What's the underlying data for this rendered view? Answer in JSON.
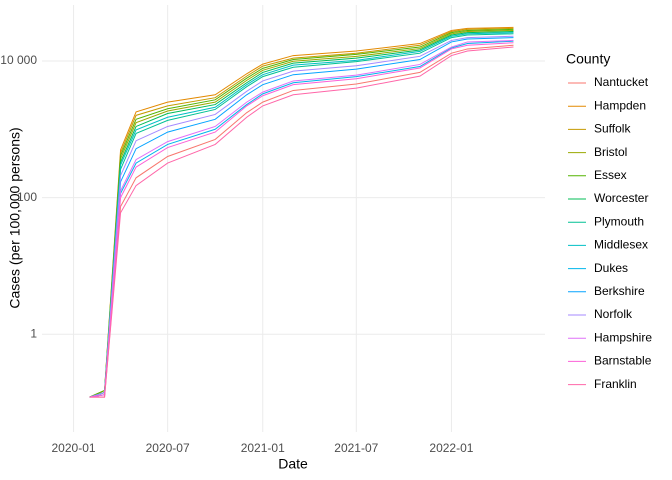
{
  "chart_data": {
    "type": "line",
    "x_label": "Date",
    "y_label": "Cases (per 100,000 persons)",
    "x": [
      "2020-02",
      "2020-03",
      "2020-04",
      "2020-05",
      "2020-07",
      "2020-10",
      "2020-12",
      "2021-01",
      "2021-03",
      "2021-07",
      "2021-11",
      "2022-01",
      "2022-02",
      "2022-05"
    ],
    "xlim": [
      "2019-11",
      "2022-07"
    ],
    "xticks": [
      "2020-01",
      "2020-07",
      "2021-01",
      "2021-07",
      "2022-01"
    ],
    "ylim": [
      0.037,
      66000
    ],
    "log_y": true,
    "yticks": [
      1,
      100,
      {
        "value": 10000,
        "label": "10 000"
      }
    ],
    "grid": true,
    "legend_title": "County",
    "legend_position": "right",
    "series": [
      {
        "name": "Nantucket",
        "color": "#F8766D",
        "values": [
          0.12,
          0.12,
          74,
          195,
          400,
          710,
          1750,
          2500,
          3700,
          4600,
          6800,
          13000,
          15000,
          17000
        ]
      },
      {
        "name": "Hampden",
        "color": "#E38900",
        "values": [
          0.12,
          0.15,
          500,
          1800,
          2500,
          3200,
          6500,
          9000,
          12000,
          14000,
          18000,
          28000,
          30000,
          31000
        ]
      },
      {
        "name": "Suffolk",
        "color": "#C49A00",
        "values": [
          0.12,
          0.14,
          450,
          1600,
          2200,
          2900,
          6000,
          8400,
          11000,
          13000,
          17000,
          27000,
          29000,
          30000
        ]
      },
      {
        "name": "Bristol",
        "color": "#99A800",
        "values": [
          0.12,
          0.14,
          370,
          1250,
          1850,
          2500,
          5200,
          7300,
          9900,
          11700,
          15200,
          25000,
          27000,
          28000
        ]
      },
      {
        "name": "Essex",
        "color": "#53B400",
        "values": [
          0.12,
          0.15,
          410,
          1400,
          2000,
          2700,
          5600,
          7800,
          10500,
          12500,
          16000,
          26000,
          28000,
          29000
        ]
      },
      {
        "name": "Worcester",
        "color": "#00BC56",
        "values": [
          0.12,
          0.14,
          330,
          1100,
          1700,
          2300,
          4800,
          6800,
          9300,
          11000,
          14500,
          24000,
          26000,
          27000
        ]
      },
      {
        "name": "Plymouth",
        "color": "#00C094",
        "values": [
          0.12,
          0.14,
          260,
          870,
          1350,
          1950,
          4200,
          5900,
          8100,
          9800,
          13000,
          22000,
          24000,
          25000
        ]
      },
      {
        "name": "Middlesex",
        "color": "#00BFC4",
        "values": [
          0.12,
          0.14,
          300,
          980,
          1500,
          2100,
          4500,
          6300,
          8700,
          10200,
          13800,
          23000,
          25000,
          26000
        ]
      },
      {
        "name": "Dukes",
        "color": "#00B6EB",
        "values": [
          0.12,
          0.13,
          115,
          320,
          600,
          1000,
          2300,
          3300,
          4800,
          5900,
          8300,
          15500,
          18000,
          19500
        ]
      },
      {
        "name": "Berkshire",
        "color": "#06A4FF",
        "values": [
          0.12,
          0.13,
          170,
          520,
          910,
          1400,
          3200,
          4500,
          6300,
          7600,
          10500,
          19000,
          21000,
          22000
        ]
      },
      {
        "name": "Norfolk",
        "color": "#A58AFF",
        "values": [
          0.12,
          0.14,
          210,
          680,
          1100,
          1650,
          3600,
          5100,
          7100,
          8500,
          11700,
          20000,
          22000,
          23000
        ]
      },
      {
        "name": "Hampshire",
        "color": "#DF70F8",
        "values": [
          0.12,
          0.13,
          126,
          360,
          660,
          1100,
          2500,
          3500,
          5100,
          6200,
          8900,
          16000,
          19000,
          20000
        ]
      },
      {
        "name": "Barnstable",
        "color": "#FB61D7",
        "values": [
          0.12,
          0.13,
          100,
          280,
          540,
          910,
          2200,
          3100,
          4500,
          5500,
          7900,
          15000,
          17000,
          18500
        ]
      },
      {
        "name": "Franklin",
        "color": "#FF66A8",
        "values": [
          0.12,
          0.12,
          60,
          150,
          320,
          600,
          1500,
          2200,
          3200,
          4000,
          6000,
          12000,
          14000,
          16000
        ]
      }
    ]
  }
}
